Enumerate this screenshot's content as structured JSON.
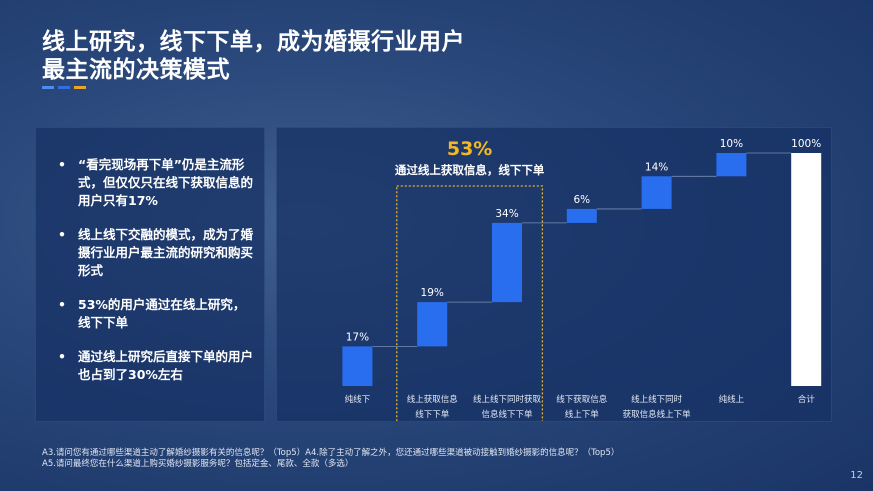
{
  "title": {
    "line1": "线上研究，线下下单，成为婚摄行业用户",
    "line2": "最主流的决策模式"
  },
  "colors": {
    "bar": "#2a6ef0",
    "total": "#ffffff",
    "highlight_border": "#e7b420",
    "highlight_text": "#f3b824",
    "accent": [
      "#4d8df0",
      "#2f6fe0",
      "#e7a52a"
    ]
  },
  "bullets": [
    "“看完现场再下单”仍是主流形式，但仅仅只在线下获取信息的用户只有17%",
    "线上线下交融的模式，成为了婚摄行业用户最主流的研究和购买形式",
    "53%的用户通过在线上研究，线下下单",
    "通过线上研究后直接下单的用户也占到了30%左右"
  ],
  "chart_data": {
    "type": "bar",
    "subtype": "waterfall",
    "categories": [
      [
        "纯线下"
      ],
      [
        "线上获取信息",
        "线下下单"
      ],
      [
        "线上线下同时获取",
        "信息线下下单"
      ],
      [
        "线下获取信息",
        "线上下单"
      ],
      [
        "线上线下同时",
        "获取信息线上下单"
      ],
      [
        "纯线上"
      ],
      [
        "合计"
      ]
    ],
    "values": [
      17,
      19,
      34,
      6,
      14,
      10,
      100
    ],
    "data_labels": [
      "17%",
      "19%",
      "34%",
      "6%",
      "14%",
      "10%",
      "100%"
    ],
    "is_total": [
      false,
      false,
      false,
      false,
      false,
      false,
      true
    ],
    "ylim": [
      0,
      100
    ],
    "grid": false,
    "annotation": {
      "value": "53%",
      "text": "通过线上获取信息，线下下单",
      "covers": [
        1,
        2
      ]
    }
  },
  "footnotes": [
    "A3.请问您有通过哪些渠道主动了解婚纱摄影有关的信息呢？（Top5）A4.除了主动了解之外，您还通过哪些渠道被动接触到婚纱摄影的信息呢？（Top5）",
    "A5.请问最终您在什么渠道上购买婚纱摄影服务呢？包括定金、尾款、全款（多选）"
  ],
  "page_number": "12"
}
